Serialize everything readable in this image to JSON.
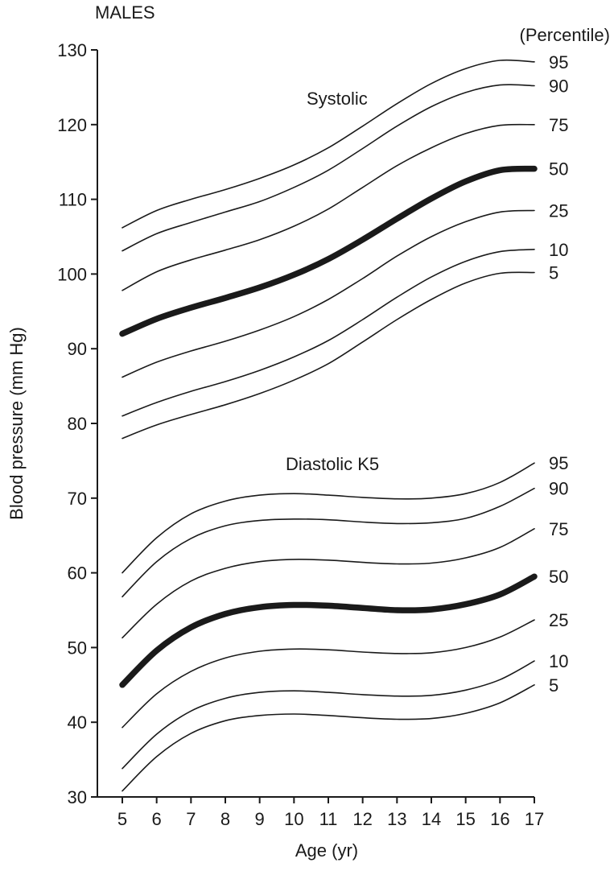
{
  "chart_data": {
    "type": "line",
    "title": "MALES",
    "xlabel": "Age (yr)",
    "ylabel": "Blood pressure (mm Hg)",
    "legend_title": "(Percentile)",
    "xlim": [
      5,
      17
    ],
    "ylim": [
      30,
      130
    ],
    "x_ticks": [
      5,
      6,
      7,
      8,
      9,
      10,
      11,
      12,
      13,
      14,
      15,
      16,
      17
    ],
    "y_ticks": [
      30,
      40,
      50,
      60,
      70,
      80,
      90,
      100,
      110,
      120,
      130
    ],
    "grid": false,
    "x": [
      5,
      6,
      7,
      8,
      9,
      10,
      11,
      12,
      13,
      14,
      15,
      16,
      17
    ],
    "groups": [
      {
        "label": "Systolic",
        "series": [
          {
            "name": "95",
            "values": [
              106.2,
              108.5,
              110,
              111.3,
              112.8,
              114.6,
              116.9,
              119.8,
              122.8,
              125.5,
              127.5,
              128.6,
              128.4
            ]
          },
          {
            "name": "90",
            "values": [
              103.1,
              105.4,
              106.9,
              108.3,
              109.7,
              111.6,
              113.9,
              116.8,
              119.8,
              122.4,
              124.3,
              125.3,
              125.2
            ]
          },
          {
            "name": "75",
            "values": [
              97.8,
              100.3,
              101.9,
              103.2,
              104.6,
              106.4,
              108.7,
              111.6,
              114.5,
              116.9,
              118.8,
              119.9,
              120
            ]
          },
          {
            "name": "50",
            "values": [
              92,
              94,
              95.5,
              96.8,
              98.2,
              99.9,
              102,
              104.6,
              107.4,
              110.1,
              112.4,
              113.9,
              114.1
            ]
          },
          {
            "name": "25",
            "values": [
              86.2,
              88.2,
              89.7,
              91,
              92.5,
              94.3,
              96.6,
              99.4,
              102.4,
              105,
              107,
              108.3,
              108.5
            ]
          },
          {
            "name": "10",
            "values": [
              81,
              82.8,
              84.3,
              85.6,
              87.1,
              88.9,
              91.1,
              93.9,
              96.9,
              99.6,
              101.7,
              103,
              103.3
            ]
          },
          {
            "name": "5",
            "values": [
              78,
              79.8,
              81.2,
              82.5,
              84,
              85.8,
              88,
              90.9,
              93.9,
              96.6,
              98.8,
              100.1,
              100.2
            ]
          }
        ]
      },
      {
        "label": "Diastolic K5",
        "series": [
          {
            "name": "95",
            "values": [
              60,
              64.7,
              67.9,
              69.6,
              70.4,
              70.6,
              70.4,
              70.1,
              69.9,
              70,
              70.6,
              72.1,
              74.7
            ]
          },
          {
            "name": "90",
            "values": [
              56.8,
              61.5,
              64.6,
              66.3,
              67,
              67.2,
              67.1,
              66.8,
              66.6,
              66.7,
              67.3,
              68.9,
              71.3
            ]
          },
          {
            "name": "75",
            "values": [
              51.3,
              55.8,
              58.9,
              60.6,
              61.5,
              61.8,
              61.7,
              61.4,
              61.2,
              61.3,
              62,
              63.4,
              65.9
            ]
          },
          {
            "name": "50",
            "values": [
              45,
              49.6,
              52.7,
              54.5,
              55.4,
              55.7,
              55.6,
              55.3,
              55,
              55.1,
              55.8,
              57.1,
              59.5
            ]
          },
          {
            "name": "25",
            "values": [
              39.3,
              43.8,
              46.8,
              48.6,
              49.5,
              49.8,
              49.7,
              49.4,
              49.2,
              49.3,
              50,
              51.4,
              53.7
            ]
          },
          {
            "name": "10",
            "values": [
              33.8,
              38.4,
              41.5,
              43.2,
              44,
              44.2,
              44,
              43.7,
              43.5,
              43.6,
              44.3,
              45.7,
              48.2
            ]
          },
          {
            "name": "5",
            "values": [
              30.8,
              35.4,
              38.5,
              40.2,
              40.9,
              41.1,
              40.9,
              40.6,
              40.4,
              40.5,
              41.2,
              42.6,
              45
            ]
          }
        ]
      }
    ]
  }
}
